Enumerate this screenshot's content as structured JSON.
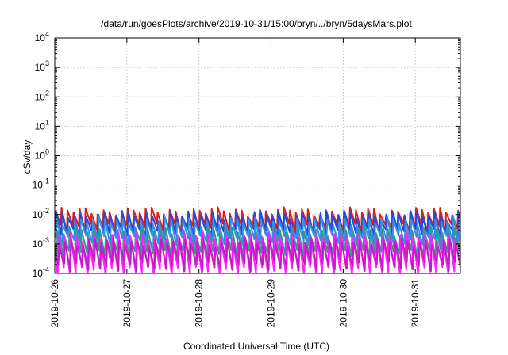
{
  "chart_data": {
    "type": "line",
    "title": "/data/run/goesPlots/archive/2019-10-31/15:00/bryn/../bryn/5daysMars.plot",
    "xlabel": "Coordinated Universal Time (UTC)",
    "ylabel": "cSv/day",
    "y_scale": "log",
    "ylim": [
      0.0001,
      10000
    ],
    "y_ticks": [
      {
        "value": 0.0001,
        "base": "10",
        "exp": "-4"
      },
      {
        "value": 0.001,
        "base": "10",
        "exp": "-3"
      },
      {
        "value": 0.01,
        "base": "10",
        "exp": "-2"
      },
      {
        "value": 0.1,
        "base": "10",
        "exp": "-1"
      },
      {
        "value": 1,
        "base": "10",
        "exp": "0"
      },
      {
        "value": 10,
        "base": "10",
        "exp": "1"
      },
      {
        "value": 100,
        "base": "10",
        "exp": "2"
      },
      {
        "value": 1000,
        "base": "10",
        "exp": "3"
      },
      {
        "value": 10000,
        "base": "10",
        "exp": "4"
      }
    ],
    "x_ticks": [
      "2019-10-26",
      "2019-10-27",
      "2019-10-28",
      "2019-10-29",
      "2019-10-30",
      "2019-10-31"
    ],
    "xlim": [
      "2019-10-26T00:00",
      "2019-10-31T15:00"
    ],
    "grid": true,
    "sawtooth_period_hours": 2,
    "series": [
      {
        "color": "#e31a1c",
        "peak": 0.013,
        "trough": 0.0036,
        "phase": 0.0
      },
      {
        "color": "#1f4fd6",
        "peak": 0.01,
        "trough": 0.0024,
        "phase": 0.1
      },
      {
        "color": "#3a8ee6",
        "peak": 0.006,
        "trough": 0.0014,
        "phase": 0.22
      },
      {
        "color": "#2a9d8f",
        "peak": 0.0028,
        "trough": 0.00045,
        "phase": 0.35
      },
      {
        "color": "#ff22ff",
        "peak": 0.0018,
        "trough": 0.00012,
        "phase": 0.5
      },
      {
        "color": "#c51bc5",
        "peak": 0.0012,
        "trough": 0.00018,
        "phase": 0.6
      }
    ]
  }
}
